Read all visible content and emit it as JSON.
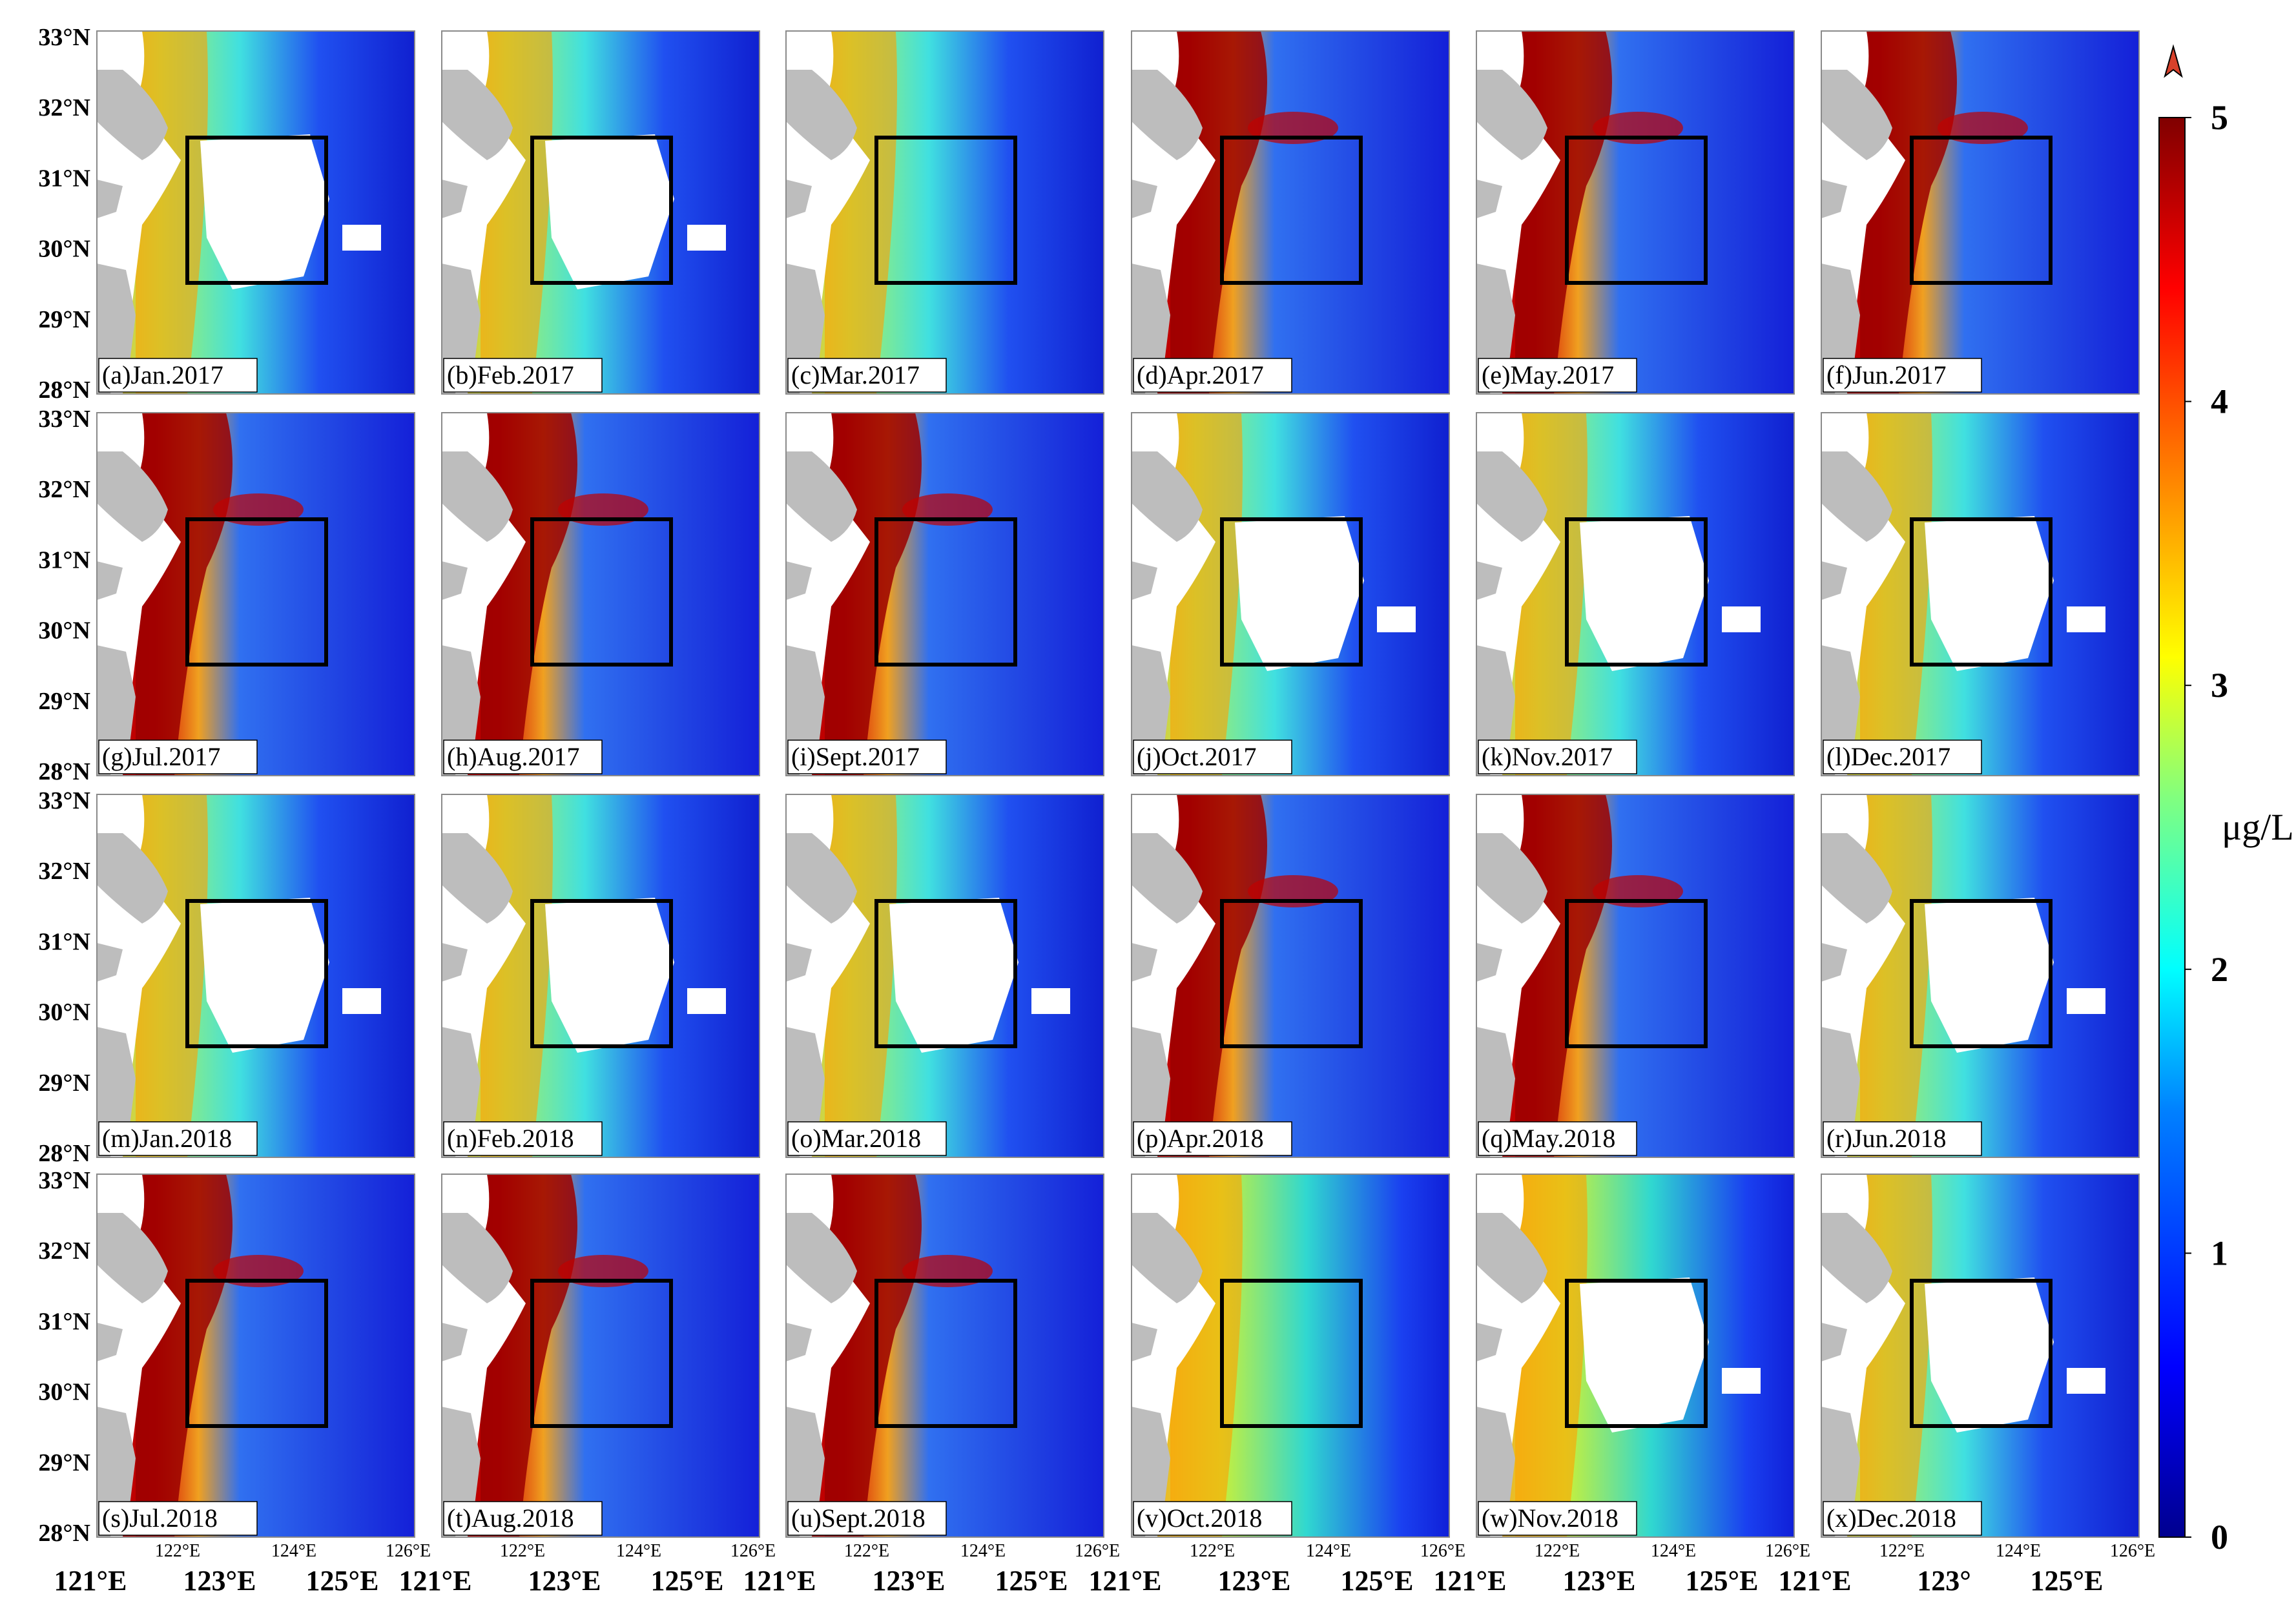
{
  "figure": {
    "panels": [
      {
        "id": "a",
        "label": "(a)Jan.2017"
      },
      {
        "id": "b",
        "label": "(b)Feb.2017"
      },
      {
        "id": "c",
        "label": "(c)Mar.2017"
      },
      {
        "id": "d",
        "label": "(d)Apr.2017"
      },
      {
        "id": "e",
        "label": "(e)May.2017"
      },
      {
        "id": "f",
        "label": "(f)Jun.2017"
      },
      {
        "id": "g",
        "label": "(g)Jul.2017"
      },
      {
        "id": "h",
        "label": "(h)Aug.2017"
      },
      {
        "id": "i",
        "label": "(i)Sept.2017"
      },
      {
        "id": "j",
        "label": "(j)Oct.2017"
      },
      {
        "id": "k",
        "label": "(k)Nov.2017"
      },
      {
        "id": "l",
        "label": "(l)Dec.2017"
      },
      {
        "id": "m",
        "label": "(m)Jan.2018"
      },
      {
        "id": "n",
        "label": "(n)Feb.2018"
      },
      {
        "id": "o",
        "label": "(o)Mar.2018"
      },
      {
        "id": "p",
        "label": "(p)Apr.2018"
      },
      {
        "id": "q",
        "label": "(q)May.2018"
      },
      {
        "id": "r",
        "label": "(r)Jun.2018"
      },
      {
        "id": "s",
        "label": "(s)Jul.2018"
      },
      {
        "id": "t",
        "label": "(t)Aug.2018"
      },
      {
        "id": "u",
        "label": "(u)Sept.2018"
      },
      {
        "id": "v",
        "label": "(v)Oct.2018"
      },
      {
        "id": "w",
        "label": "(w)Nov.2018"
      },
      {
        "id": "x",
        "label": "(x)Dec.2018"
      }
    ],
    "lat_ticks": [
      "33°N",
      "32°N",
      "31°N",
      "30°N",
      "29°N",
      "28°N"
    ],
    "lon_ticks_major": [
      "121°E",
      "123°E",
      "125°E"
    ],
    "lon_ticks_major_last": [
      "121°E",
      "123°",
      "125°E"
    ],
    "lon_ticks_minor": [
      "122°E",
      "124°E",
      "126°E"
    ],
    "colorbar": {
      "unit": "μg/L",
      "ticks": [
        "5",
        "4",
        "3",
        "2",
        "1",
        "0"
      ],
      "colors": [
        "#00008f",
        "#0000ff",
        "#0080ff",
        "#00ffff",
        "#80ff80",
        "#ffff00",
        "#ff8000",
        "#ff0000",
        "#800000"
      ]
    },
    "colors": {
      "land": "#bdbdbd",
      "frame": "#000000",
      "north_arrow": "#d9412b"
    }
  }
}
